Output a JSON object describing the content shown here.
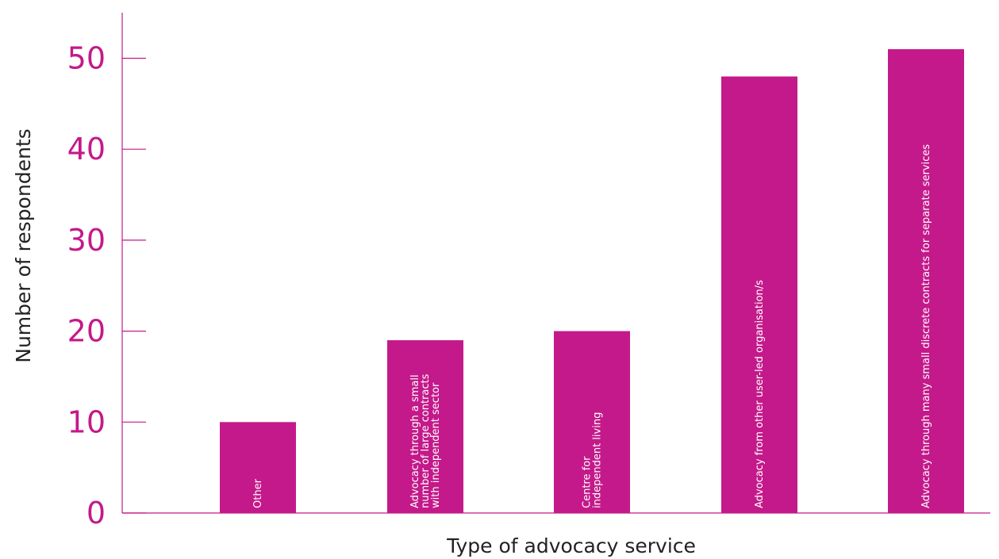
{
  "colors": {
    "accent": "#c4198a",
    "axis_title": "#222222",
    "bar_label": "#ffffff"
  },
  "chart_data": {
    "type": "bar",
    "title": "",
    "xlabel": "Type of advocacy service",
    "ylabel": "Number of respondents",
    "ylim": [
      0,
      55
    ],
    "yticks": [
      0,
      10,
      20,
      30,
      40,
      50
    ],
    "grid": false,
    "orientation": "vertical",
    "bar_labels_inside": true,
    "bar_label_rotation": "vertical",
    "categories": [
      [
        "Other"
      ],
      [
        "Advocacy through a small",
        "number of large contracts",
        "with independent sector"
      ],
      [
        "Centre for",
        "independent living"
      ],
      [
        "Advocacy from other user-led organisation/s"
      ],
      [
        "Advocacy through many small discrete contracts for separate services"
      ]
    ],
    "values": [
      10,
      19,
      20,
      48,
      51
    ]
  }
}
